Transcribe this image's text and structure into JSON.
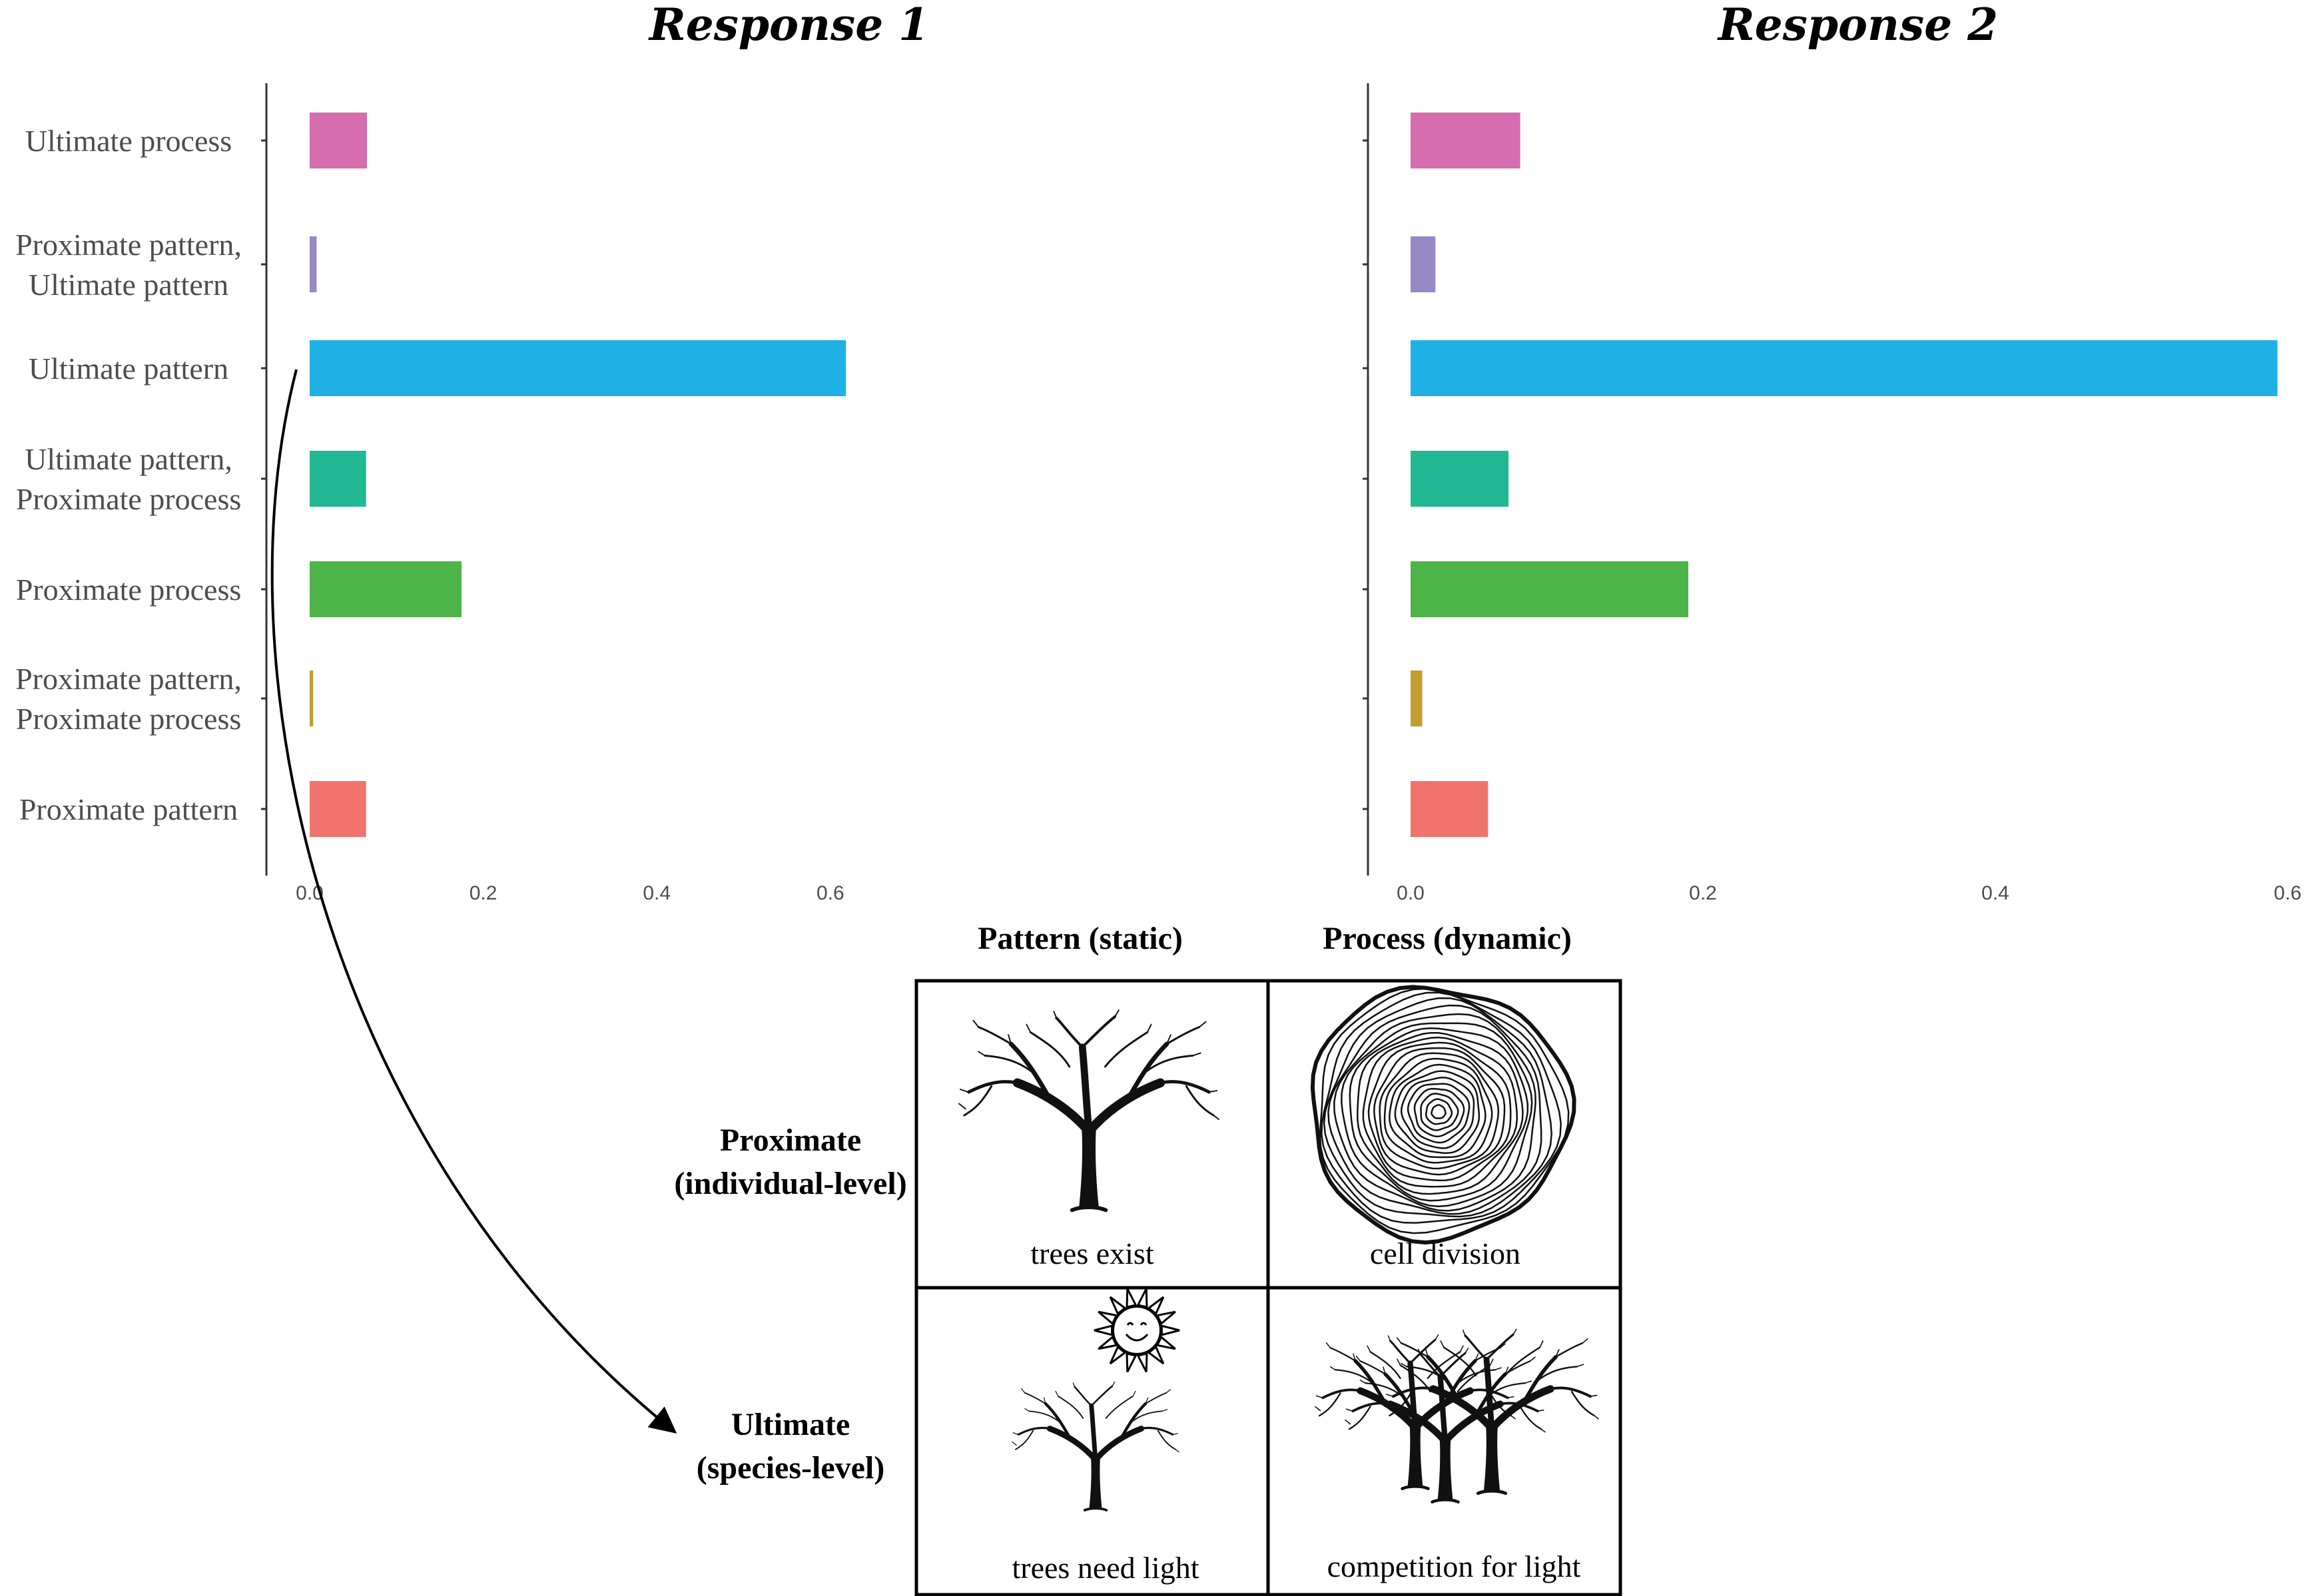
{
  "chart_data": [
    {
      "type": "bar",
      "orientation": "horizontal",
      "title": "Response 1",
      "categories": [
        "Ultimate process",
        "Proximate pattern, Ultimate pattern",
        "Ultimate pattern",
        "Ultimate pattern, Proximate process",
        "Proximate process",
        "Proximate pattern, Proximate process",
        "Proximate pattern"
      ],
      "category_lines": [
        [
          "Ultimate process"
        ],
        [
          "Proximate pattern,",
          "Ultimate pattern"
        ],
        [
          "Ultimate pattern"
        ],
        [
          "Ultimate pattern,",
          "Proximate process"
        ],
        [
          "Proximate process"
        ],
        [
          "Proximate pattern,",
          "Proximate process"
        ],
        [
          "Proximate pattern"
        ]
      ],
      "values": [
        0.066,
        0.008,
        0.618,
        0.065,
        0.175,
        0.004,
        0.065
      ],
      "colors": [
        "#d56daf",
        "#9788c6",
        "#1fb1e6",
        "#22b893",
        "#4db548",
        "#c39f33",
        "#f1746c"
      ],
      "xlim": [
        -0.03,
        0.71
      ],
      "xticks": [
        0.0,
        0.2,
        0.4,
        0.6
      ],
      "xtick_labels": [
        "0.0",
        "0.2",
        "0.4",
        "0.6"
      ],
      "xlabel": "",
      "ylabel": "",
      "grid": false,
      "legend": "none"
    },
    {
      "type": "bar",
      "orientation": "horizontal",
      "title": "Response 2",
      "categories": [
        "Ultimate process",
        "Proximate pattern, Ultimate pattern",
        "Ultimate pattern",
        "Ultimate pattern, Proximate process",
        "Proximate process",
        "Proximate pattern, Proximate process",
        "Proximate pattern"
      ],
      "values": [
        0.075,
        0.017,
        0.593,
        0.067,
        0.19,
        0.008,
        0.053
      ],
      "colors": [
        "#d56daf",
        "#9788c6",
        "#1fb1e6",
        "#22b893",
        "#4db548",
        "#c39f33",
        "#f1746c"
      ],
      "xlim": [
        -0.03,
        0.61
      ],
      "xticks": [
        0.0,
        0.2,
        0.4,
        0.6
      ],
      "xtick_labels": [
        "0.0",
        "0.2",
        "0.4",
        "0.6"
      ],
      "xlabel": "",
      "ylabel": "",
      "grid": false,
      "legend": "none"
    }
  ],
  "grid_table": {
    "col_headers": [
      "Pattern (static)",
      "Process (dynamic)"
    ],
    "row_headers": [
      [
        "Proximate",
        "(individual-level)"
      ],
      [
        "Ultimate",
        "(species-level)"
      ]
    ],
    "cells": [
      [
        {
          "caption": "trees exist",
          "icon": "single-tree-icon"
        },
        {
          "caption": "cell division",
          "icon": "tree-rings-icon"
        }
      ],
      [
        {
          "caption": "trees need light",
          "icon": "tree-with-sun-icon"
        },
        {
          "caption": "competition for light",
          "icon": "forest-trees-icon"
        }
      ]
    ]
  },
  "arrow_icon": "curved-arrow-icon"
}
